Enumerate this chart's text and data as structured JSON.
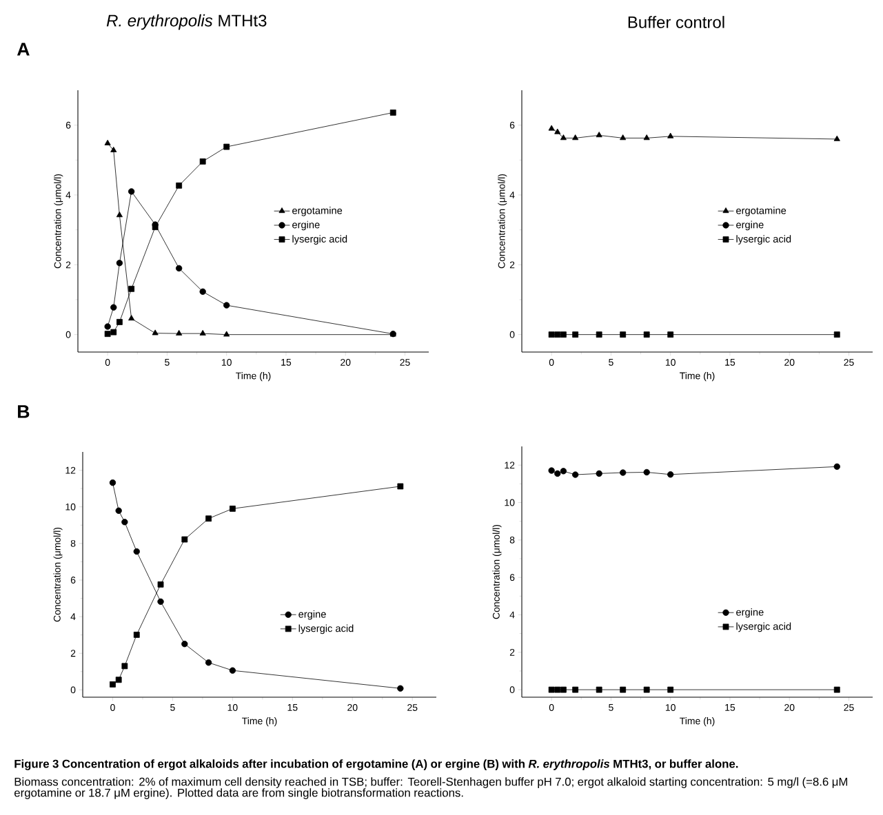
{
  "chart_data": [
    {
      "type": "line",
      "title": "*R. erythropolis* MTHt3",
      "xlabel": "Time (h)",
      "ylabel": "Concentration (μmol/l)",
      "x": [
        0,
        0.5,
        1,
        2,
        4,
        6,
        8,
        10,
        24
      ],
      "xlim": [
        -2.5,
        27
      ],
      "ylim": [
        -0.5,
        7
      ],
      "xticks": [
        0,
        5,
        10,
        15,
        20,
        25
      ],
      "yticks": [
        0,
        2,
        4,
        6
      ],
      "legend": "right",
      "line_style": "solid",
      "series": [
        {
          "name": "ergotamine",
          "color": "#000000",
          "marker": "triangle",
          "values": [
            5.48,
            5.28,
            3.42,
            0.46,
            0.04,
            0.03,
            0.03,
            0.0,
            0.0
          ]
        },
        {
          "name": "ergine",
          "color": "#000000",
          "marker": "circle",
          "values": [
            0.23,
            0.78,
            2.05,
            4.1,
            3.15,
            1.9,
            1.23,
            0.84,
            0.02
          ]
        },
        {
          "name": "lysergic acid",
          "color": "#000000",
          "marker": "square",
          "values": [
            0.02,
            0.07,
            0.36,
            1.31,
            3.08,
            4.27,
            4.96,
            5.38,
            6.36
          ]
        }
      ],
      "annotations": [
        "A",
        "Figure 3 Concentration of ergot alkaloids after incubation of ergotamine (A) or ergine (B) with *R. erythropolis* MTHt3, or buffer alone.",
        "Biomass concentration: 2% of maximum cell density reached in TSB; buffer: Teorell-Stenhagen buffer pH 7.0; ergot alkaloid starting concentration: 5 mg/l (=8.6 μM ergotamine or 18.7 μM ergine). Plotted data are from single biotransformation reactions."
      ]
    },
    {
      "type": "line",
      "title": "Buffer control",
      "xlabel": "Time (h)",
      "ylabel": "Concentration (μmol/l)",
      "x": [
        0,
        0.5,
        1,
        2,
        4,
        6,
        8,
        10,
        24
      ],
      "xlim": [
        -2.5,
        27
      ],
      "ylim": [
        -0.5,
        7
      ],
      "xticks": [
        0,
        5,
        10,
        15,
        20,
        25
      ],
      "yticks": [
        0,
        2,
        4,
        6
      ],
      "legend": "right",
      "line_style": "solid",
      "series": [
        {
          "name": "ergotamine",
          "color": "#000000",
          "marker": "triangle",
          "values": [
            5.9,
            5.8,
            5.63,
            5.63,
            5.71,
            5.63,
            5.63,
            5.68,
            5.6
          ]
        },
        {
          "name": "ergine",
          "color": "#000000",
          "marker": "circle",
          "values": [
            null,
            null,
            null,
            null,
            null,
            null,
            null,
            null,
            null
          ]
        },
        {
          "name": "lysergic acid",
          "color": "#000000",
          "marker": "square",
          "values": [
            0,
            0,
            0,
            0,
            0,
            0,
            0,
            0,
            0
          ]
        }
      ]
    },
    {
      "type": "line",
      "xlabel": "Time (h)",
      "ylabel": "Concentration (μmol/l)",
      "x": [
        0,
        0.5,
        1,
        2,
        4,
        6,
        8,
        10,
        24
      ],
      "xlim": [
        -2.5,
        27
      ],
      "ylim": [
        -0.4,
        13
      ],
      "xticks": [
        0,
        5,
        10,
        15,
        20,
        25
      ],
      "yticks": [
        0,
        2,
        4,
        6,
        8,
        10,
        12
      ],
      "legend": "bottom right",
      "line_style": "solid",
      "series": [
        {
          "name": "ergine",
          "color": "#000000",
          "marker": "circle",
          "values": [
            11.32,
            9.79,
            9.17,
            7.56,
            4.82,
            2.51,
            1.49,
            1.06,
            0.08
          ]
        },
        {
          "name": "lysergic acid",
          "color": "#000000",
          "marker": "square",
          "values": [
            0.3,
            0.55,
            1.3,
            3.01,
            5.76,
            8.22,
            9.36,
            9.9,
            11.12
          ]
        }
      ],
      "annotations": [
        "B"
      ]
    },
    {
      "type": "line",
      "xlabel": "Time (h)",
      "ylabel": "Concentration (μmol/l)",
      "x": [
        0,
        0.5,
        1,
        2,
        4,
        6,
        8,
        10,
        24
      ],
      "xlim": [
        -2.5,
        27
      ],
      "ylim": [
        -0.4,
        13
      ],
      "xticks": [
        0,
        5,
        10,
        15,
        20,
        25
      ],
      "yticks": [
        0,
        2,
        4,
        6,
        8,
        10,
        12
      ],
      "legend": "bottom right",
      "line_style": "solid",
      "series": [
        {
          "name": "ergine",
          "color": "#000000",
          "marker": "circle",
          "values": [
            11.71,
            11.55,
            11.68,
            11.49,
            11.55,
            11.6,
            11.62,
            11.5,
            11.92
          ]
        },
        {
          "name": "lysergic acid",
          "color": "#000000",
          "marker": "square",
          "values": [
            0,
            0,
            0,
            0,
            0,
            0,
            0,
            0,
            0
          ]
        }
      ]
    }
  ]
}
